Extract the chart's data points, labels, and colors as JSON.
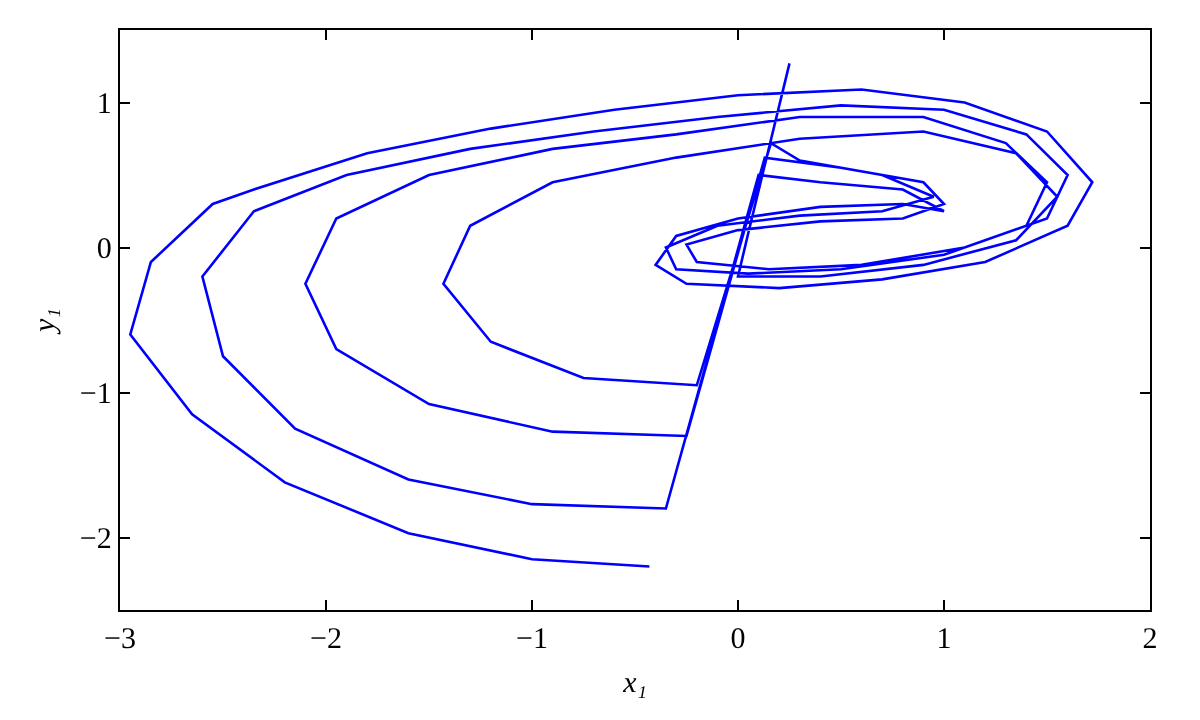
{
  "chart_data": {
    "type": "line",
    "xlabel": "x₁",
    "ylabel": "y₁",
    "xlim": [
      -3,
      2
    ],
    "ylim": [
      -2.5,
      1.5
    ],
    "xticks": [
      {
        "value": -3,
        "label": "−3"
      },
      {
        "value": -2,
        "label": "−2"
      },
      {
        "value": -1,
        "label": "−1"
      },
      0,
      1,
      2
    ],
    "yticks": [
      {
        "value": -2,
        "label": "−2"
      },
      {
        "value": -1,
        "label": "−1"
      },
      0,
      1
    ],
    "marker": "none",
    "line_style": "solid",
    "series": [
      {
        "color": "#0000ff",
        "x": [
          -0.43,
          -1.0,
          -1.6,
          -2.2,
          -2.65,
          -2.95,
          -2.85,
          -2.55,
          -2.35,
          -1.8,
          -1.2,
          -0.6,
          0,
          0.6,
          1.1,
          1.5,
          1.72,
          1.6,
          1.2,
          0.7,
          0.2,
          -0.25,
          -0.4,
          -0.3,
          0,
          0.4,
          0.8,
          1.0,
          0.8,
          0.4,
          0.1,
          -0.35,
          -1.0,
          -1.6,
          -2.15,
          -2.5,
          -2.6,
          -2.35,
          -1.9,
          -1.3,
          -0.7,
          -0.1,
          0.5,
          1.0,
          1.4,
          1.6,
          1.5,
          1.1,
          0.6,
          0.15,
          -0.2,
          -0.25,
          0,
          0.4,
          0.8,
          1.0,
          0.9,
          0.5,
          0.13,
          -0.25,
          -0.9,
          -1.5,
          -1.95,
          -2.1,
          -1.95,
          -1.5,
          -0.9,
          -0.3,
          0.3,
          0.9,
          1.3,
          1.5,
          1.4,
          1.0,
          0.5,
          0.05,
          -0.3,
          -0.35,
          -0.1,
          0.3,
          0.7,
          0.95,
          0.7,
          0.3,
          0.16,
          -0.2,
          -0.75,
          -1.2,
          -1.43,
          -1.3,
          -0.9,
          -0.3,
          0.3,
          0.9,
          1.35,
          1.55,
          1.35,
          0.9,
          0.4,
          0,
          0.05,
          0.25
        ],
        "values": [
          -2.2,
          -2.15,
          -1.97,
          -1.62,
          -1.15,
          -0.6,
          -0.1,
          0.3,
          0.4,
          0.65,
          0.82,
          0.95,
          1.05,
          1.09,
          1.0,
          0.8,
          0.45,
          0.15,
          -0.1,
          -0.22,
          -0.28,
          -0.25,
          -0.12,
          0.08,
          0.2,
          0.28,
          0.3,
          0.25,
          0.4,
          0.45,
          0.5,
          -1.8,
          -1.77,
          -1.6,
          -1.25,
          -0.75,
          -0.2,
          0.25,
          0.5,
          0.68,
          0.8,
          0.9,
          0.98,
          0.95,
          0.78,
          0.5,
          0.2,
          0,
          -0.12,
          -0.15,
          -0.1,
          0.02,
          0.12,
          0.18,
          0.2,
          0.3,
          0.45,
          0.55,
          0.62,
          -1.3,
          -1.27,
          -1.08,
          -0.7,
          -0.25,
          0.2,
          0.5,
          0.68,
          0.78,
          0.9,
          0.9,
          0.72,
          0.45,
          0.15,
          -0.05,
          -0.15,
          -0.18,
          -0.15,
          0,
          0.15,
          0.22,
          0.25,
          0.35,
          0.5,
          0.6,
          0.72,
          -0.95,
          -0.9,
          -0.65,
          -0.25,
          0.15,
          0.45,
          0.62,
          0.75,
          0.8,
          0.65,
          0.35,
          0.05,
          -0.12,
          -0.2,
          -0.2,
          0.1,
          1.27
        ]
      }
    ]
  }
}
